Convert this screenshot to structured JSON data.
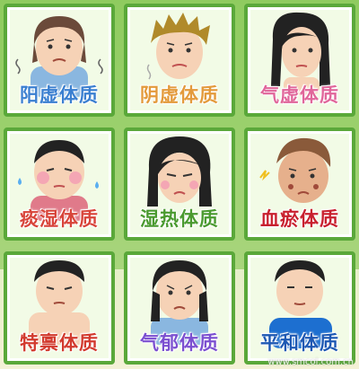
{
  "cards": [
    {
      "label": "阳虚体质",
      "color": "#3a7fd0"
    },
    {
      "label": "阴虚体质",
      "color": "#e39a3b"
    },
    {
      "label": "气虚体质",
      "color": "#e0669a"
    },
    {
      "label": "痰湿体质",
      "color": "#d8443a"
    },
    {
      "label": "湿热体质",
      "color": "#4a9a2f"
    },
    {
      "label": "血瘀体质",
      "color": "#c8202e"
    },
    {
      "label": "特禀体质",
      "color": "#d23a2e"
    },
    {
      "label": "气郁体质",
      "color": "#7b4fd0"
    },
    {
      "label": "平和体质",
      "color": "#1d58b3"
    }
  ],
  "watermark": "www.smcol.com.cn",
  "colors": {
    "frame": "#5aa83a",
    "background": "#9ccf6e"
  }
}
